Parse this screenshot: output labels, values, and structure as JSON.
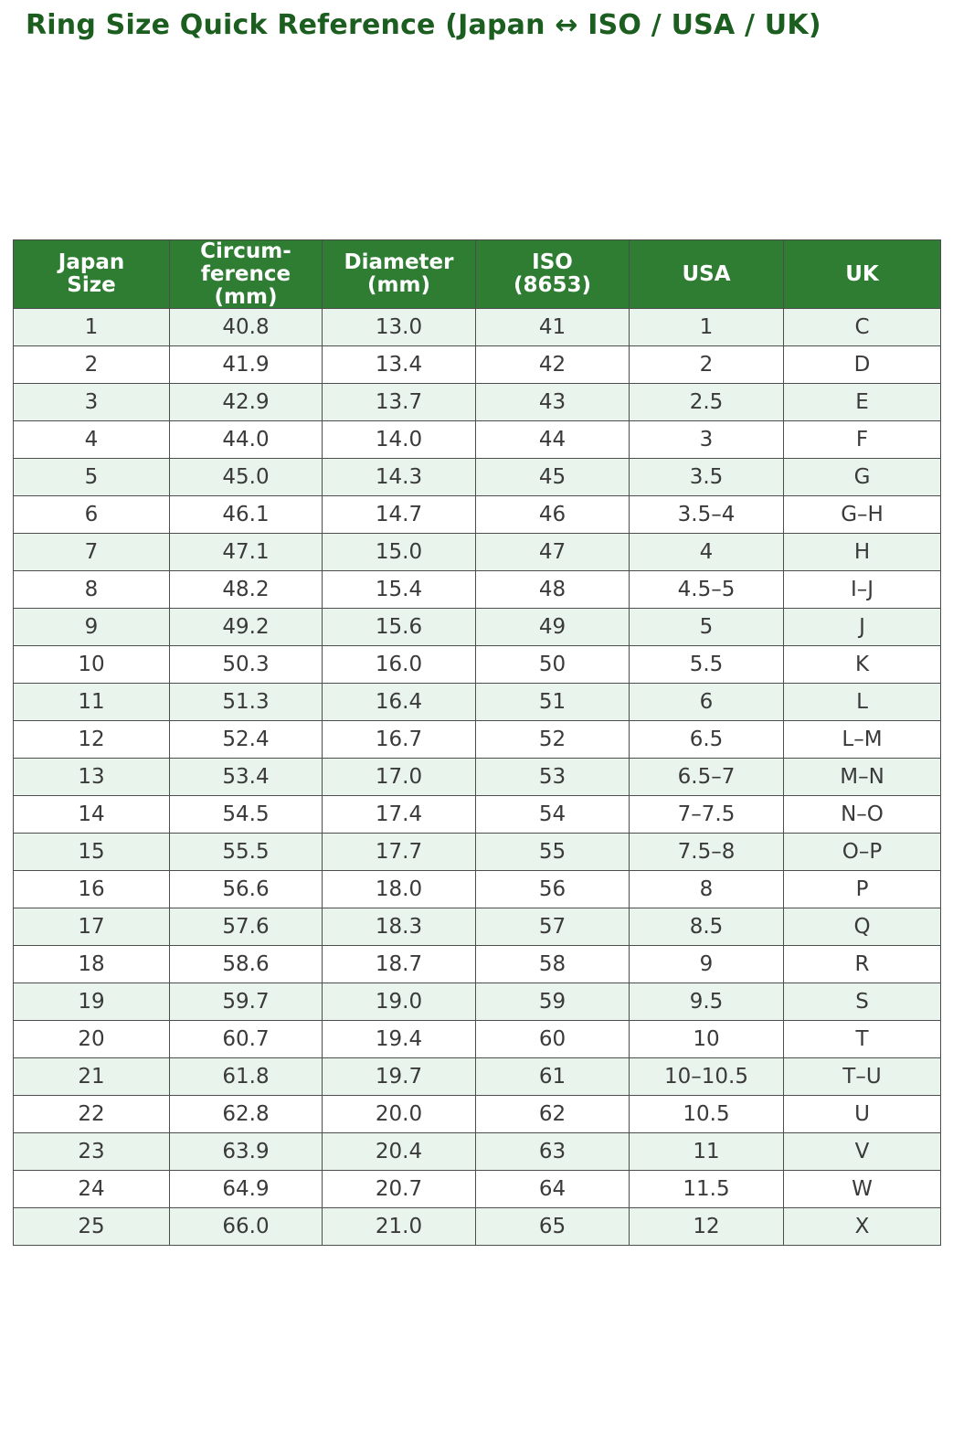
{
  "title": "Ring Size Quick Reference (Japan ↔ ISO / USA / UK)",
  "colors": {
    "title_text": "#1b5e20",
    "header_bg": "#2e7d32",
    "header_text": "#ffffff",
    "row_alt_bg": "#e9f5ec",
    "row_bg": "#ffffff",
    "border": "#4d4d4d",
    "body_text": "#3a3a3a"
  },
  "chart_data": {
    "type": "table",
    "title": "Ring Size Quick Reference (Japan ↔ ISO / USA / UK)",
    "columns": [
      "Japan\nSize",
      "Circum-\nference\n(mm)",
      "Diameter\n(mm)",
      "ISO\n(8653)",
      "USA",
      "UK"
    ],
    "rows": [
      [
        "1",
        "40.8",
        "13.0",
        "41",
        "1",
        "C"
      ],
      [
        "2",
        "41.9",
        "13.4",
        "42",
        "2",
        "D"
      ],
      [
        "3",
        "42.9",
        "13.7",
        "43",
        "2.5",
        "E"
      ],
      [
        "4",
        "44.0",
        "14.0",
        "44",
        "3",
        "F"
      ],
      [
        "5",
        "45.0",
        "14.3",
        "45",
        "3.5",
        "G"
      ],
      [
        "6",
        "46.1",
        "14.7",
        "46",
        "3.5–4",
        "G–H"
      ],
      [
        "7",
        "47.1",
        "15.0",
        "47",
        "4",
        "H"
      ],
      [
        "8",
        "48.2",
        "15.4",
        "48",
        "4.5–5",
        "I–J"
      ],
      [
        "9",
        "49.2",
        "15.6",
        "49",
        "5",
        "J"
      ],
      [
        "10",
        "50.3",
        "16.0",
        "50",
        "5.5",
        "K"
      ],
      [
        "11",
        "51.3",
        "16.4",
        "51",
        "6",
        "L"
      ],
      [
        "12",
        "52.4",
        "16.7",
        "52",
        "6.5",
        "L–M"
      ],
      [
        "13",
        "53.4",
        "17.0",
        "53",
        "6.5–7",
        "M–N"
      ],
      [
        "14",
        "54.5",
        "17.4",
        "54",
        "7–7.5",
        "N–O"
      ],
      [
        "15",
        "55.5",
        "17.7",
        "55",
        "7.5–8",
        "O–P"
      ],
      [
        "16",
        "56.6",
        "18.0",
        "56",
        "8",
        "P"
      ],
      [
        "17",
        "57.6",
        "18.3",
        "57",
        "8.5",
        "Q"
      ],
      [
        "18",
        "58.6",
        "18.7",
        "58",
        "9",
        "R"
      ],
      [
        "19",
        "59.7",
        "19.0",
        "59",
        "9.5",
        "S"
      ],
      [
        "20",
        "60.7",
        "19.4",
        "60",
        "10",
        "T"
      ],
      [
        "21",
        "61.8",
        "19.7",
        "61",
        "10–10.5",
        "T–U"
      ],
      [
        "22",
        "62.8",
        "20.0",
        "62",
        "10.5",
        "U"
      ],
      [
        "23",
        "63.9",
        "20.4",
        "63",
        "11",
        "V"
      ],
      [
        "24",
        "64.9",
        "20.7",
        "64",
        "11.5",
        "W"
      ],
      [
        "25",
        "66.0",
        "21.0",
        "65",
        "12",
        "X"
      ]
    ]
  }
}
